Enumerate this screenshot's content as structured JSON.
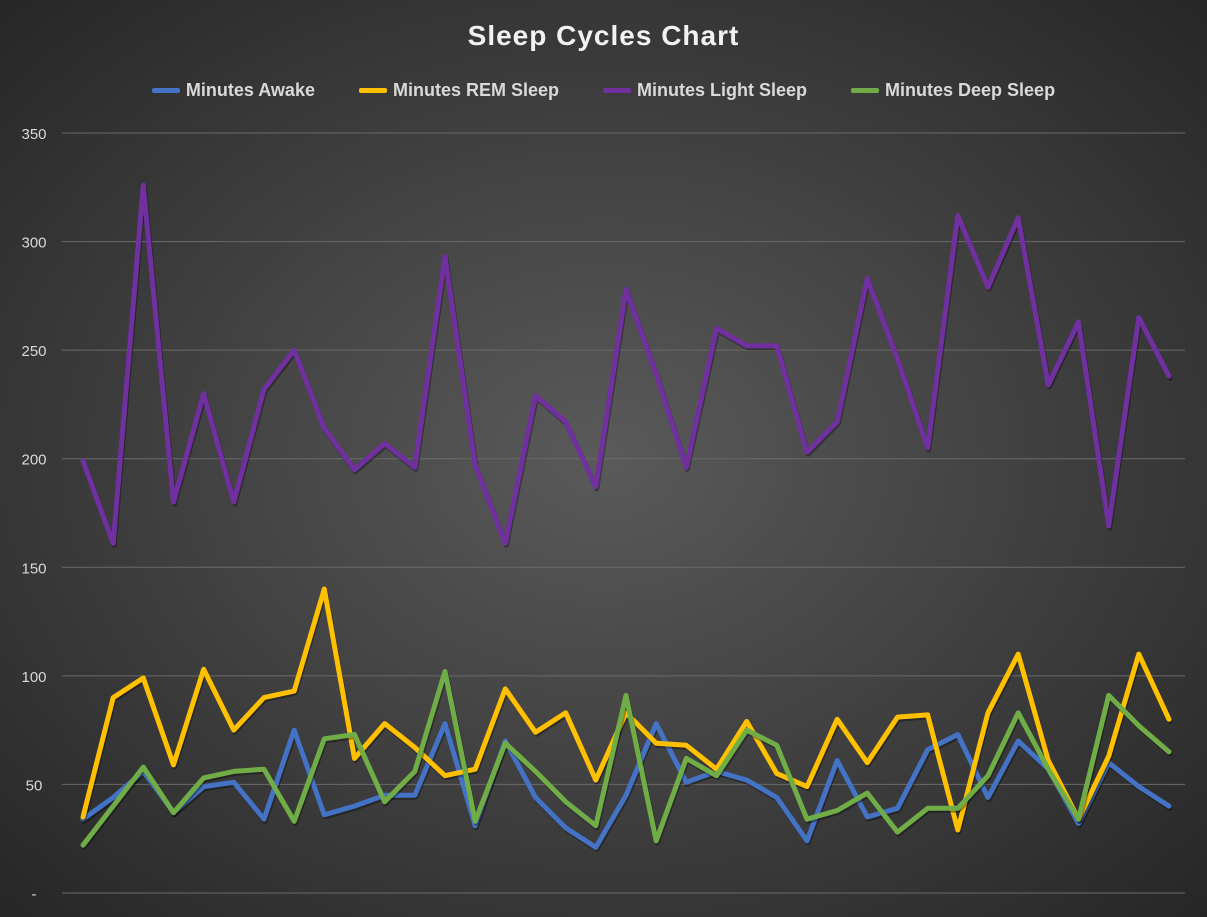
{
  "chart_data": {
    "type": "line",
    "title": "Sleep Cycles Chart",
    "xlabel": "",
    "ylabel": "",
    "ylim": [
      0,
      350
    ],
    "yticks": [
      0,
      50,
      100,
      150,
      200,
      250,
      300,
      350
    ],
    "ytick_labels": [
      "-",
      "50",
      "100",
      "150",
      "200",
      "250",
      "300",
      "350"
    ],
    "grid": true,
    "legend_position": "top",
    "x": [
      1,
      2,
      3,
      4,
      5,
      6,
      7,
      8,
      9,
      10,
      11,
      12,
      13,
      14,
      15,
      16,
      17,
      18,
      19,
      20,
      21,
      22,
      23,
      24,
      25,
      26,
      27,
      28,
      29,
      30,
      31,
      32,
      33,
      34,
      35,
      36,
      37
    ],
    "series": [
      {
        "name": "Minutes Awake",
        "color": "#4472c4",
        "values": [
          34,
          44,
          56,
          37,
          49,
          51,
          34,
          75,
          36,
          40,
          45,
          45,
          78,
          31,
          70,
          44,
          30,
          21,
          45,
          78,
          51,
          56,
          52,
          44,
          24,
          61,
          35,
          39,
          66,
          73,
          44,
          70,
          57,
          32,
          60,
          49,
          40
        ]
      },
      {
        "name": "Minutes REM Sleep",
        "color": "#ffc000",
        "values": [
          35,
          90,
          99,
          59,
          103,
          75,
          90,
          93,
          140,
          62,
          78,
          67,
          54,
          57,
          94,
          74,
          83,
          52,
          83,
          69,
          68,
          57,
          79,
          55,
          49,
          80,
          60,
          81,
          82,
          29,
          83,
          110,
          61,
          34,
          63,
          110,
          80
        ]
      },
      {
        "name": "Minutes Light Sleep",
        "color": "#7030a0",
        "values": [
          199,
          161,
          326,
          180,
          230,
          180,
          232,
          250,
          214,
          195,
          207,
          196,
          293,
          197,
          161,
          229,
          217,
          187,
          278,
          239,
          196,
          260,
          252,
          252,
          203,
          217,
          283,
          246,
          205,
          312,
          279,
          311,
          234,
          263,
          169,
          265,
          238
        ]
      },
      {
        "name": "Minutes Deep Sleep",
        "color": "#70ad47",
        "values": [
          22,
          40,
          58,
          37,
          53,
          56,
          57,
          33,
          71,
          73,
          42,
          56,
          102,
          33,
          69,
          56,
          42,
          31,
          91,
          24,
          62,
          54,
          75,
          68,
          34,
          38,
          46,
          28,
          39,
          39,
          54,
          83,
          57,
          34,
          91,
          77,
          65
        ]
      }
    ]
  }
}
